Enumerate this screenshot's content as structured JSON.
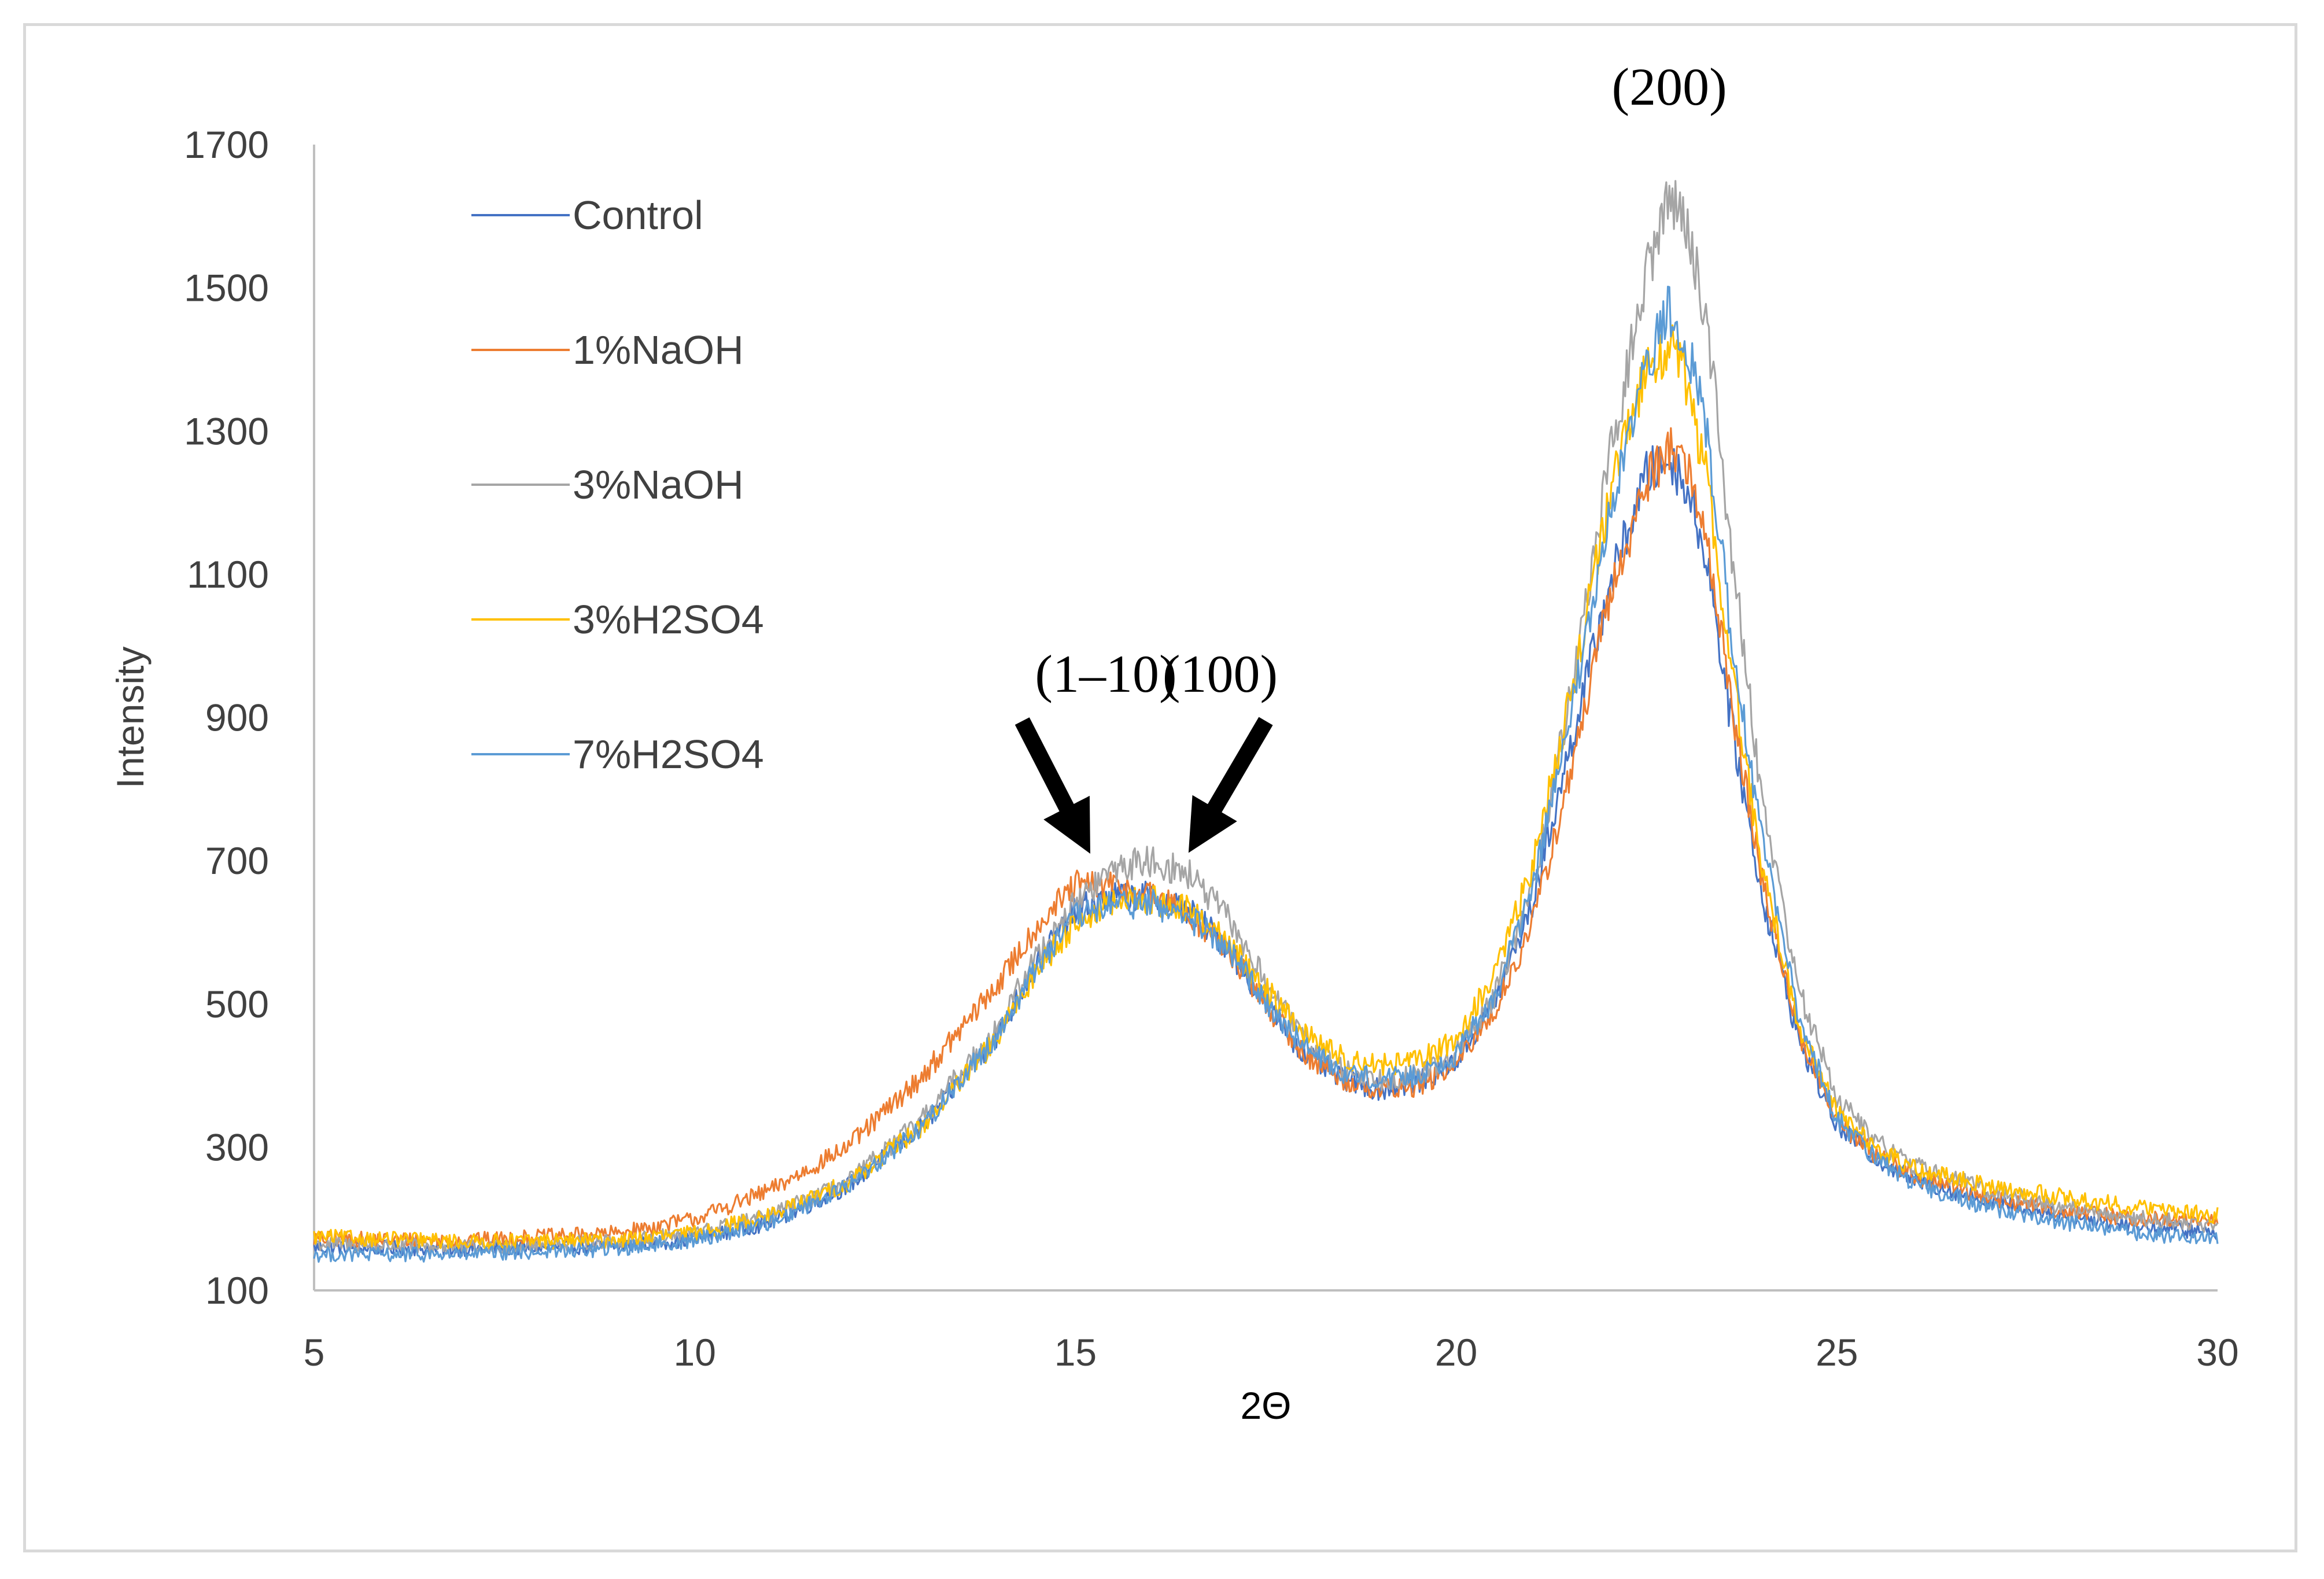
{
  "chart_data": {
    "type": "line",
    "title": "",
    "xlabel": "2Θ",
    "ylabel": "Intensity",
    "xlim": [
      5,
      30
    ],
    "ylim": [
      100,
      1700
    ],
    "xticks": [
      5,
      10,
      15,
      20,
      25,
      30
    ],
    "yticks": [
      100,
      300,
      500,
      700,
      900,
      1100,
      1300,
      1500,
      1700
    ],
    "grid": false,
    "legend_position": "top-left",
    "series": [
      {
        "name": "Control",
        "color": "#4472c4",
        "x": [
          5,
          7,
          9,
          10,
          11,
          12,
          13,
          14,
          14.5,
          15,
          15.5,
          16,
          16.5,
          17,
          17.5,
          18,
          18.5,
          19,
          19.5,
          20,
          20.5,
          21,
          21.5,
          22,
          22.5,
          22.8,
          23,
          23.3,
          23.6,
          24,
          24.5,
          25,
          25.5,
          26,
          27,
          28,
          29,
          30
        ],
        "y": [
          160,
          158,
          162,
          172,
          195,
          245,
          330,
          460,
          560,
          630,
          650,
          650,
          630,
          580,
          500,
          430,
          395,
          380,
          390,
          420,
          500,
          640,
          860,
          1080,
          1240,
          1260,
          1230,
          1120,
          900,
          660,
          450,
          330,
          285,
          255,
          225,
          205,
          190,
          180
        ]
      },
      {
        "name": "1%NaOH",
        "color": "#ed7d31",
        "x": [
          5,
          7,
          9,
          10,
          11,
          12,
          13,
          14,
          14.5,
          15,
          15.5,
          16,
          16.5,
          17,
          17.5,
          18,
          18.5,
          19,
          19.5,
          20,
          20.5,
          21,
          21.5,
          22,
          22.5,
          22.8,
          23,
          23.3,
          23.6,
          24,
          24.5,
          25,
          25.5,
          26,
          27,
          28,
          29,
          30
        ],
        "y": [
          172,
          170,
          180,
          200,
          240,
          300,
          400,
          530,
          610,
          665,
          665,
          650,
          625,
          575,
          500,
          430,
          395,
          380,
          385,
          415,
          490,
          610,
          820,
          1060,
          1230,
          1280,
          1260,
          1150,
          930,
          680,
          460,
          335,
          290,
          260,
          230,
          210,
          200,
          195
        ]
      },
      {
        "name": "3%NaOH",
        "color": "#a5a5a5",
        "x": [
          5,
          7,
          9,
          10,
          11,
          12,
          13,
          14,
          14.5,
          15,
          15.5,
          16,
          16.5,
          17,
          17.5,
          18,
          18.5,
          19,
          19.5,
          20,
          20.5,
          21,
          21.5,
          22,
          22.5,
          22.8,
          23,
          23.3,
          23.6,
          24,
          24.5,
          25,
          25.5,
          26,
          27,
          28,
          29,
          30
        ],
        "y": [
          165,
          160,
          168,
          180,
          205,
          250,
          340,
          470,
          570,
          640,
          690,
          700,
          680,
          620,
          530,
          450,
          410,
          395,
          400,
          430,
          510,
          660,
          930,
          1250,
          1520,
          1630,
          1600,
          1450,
          1150,
          800,
          520,
          370,
          310,
          275,
          240,
          215,
          200,
          190
        ]
      },
      {
        "name": "3%H2SO4",
        "color": "#ffc000",
        "x": [
          5,
          7,
          9,
          10,
          11,
          12,
          13,
          14,
          14.5,
          15,
          15.5,
          16,
          16.5,
          17,
          17.5,
          18,
          18.5,
          19,
          19.5,
          20,
          20.5,
          21,
          21.5,
          22,
          22.5,
          22.8,
          23,
          23.3,
          23.6,
          24,
          24.5,
          25,
          25.5,
          26,
          27,
          28,
          29,
          30
        ],
        "y": [
          175,
          168,
          170,
          180,
          205,
          250,
          330,
          455,
          550,
          615,
          640,
          645,
          630,
          585,
          520,
          460,
          425,
          415,
          420,
          450,
          540,
          690,
          930,
          1200,
          1390,
          1420,
          1380,
          1230,
          980,
          700,
          470,
          350,
          300,
          270,
          245,
          230,
          215,
          205
        ]
      },
      {
        "name": "7%H2SO4",
        "color": "#5b9bd5",
        "x": [
          5,
          7,
          9,
          10,
          11,
          12,
          13,
          14,
          14.5,
          15,
          15.5,
          16,
          16.5,
          17,
          17.5,
          18,
          18.5,
          19,
          19.5,
          20,
          20.5,
          21,
          21.5,
          22,
          22.5,
          22.8,
          23,
          23.3,
          23.6,
          24,
          24.5,
          25,
          25.5,
          26,
          27,
          28,
          29,
          30
        ],
        "y": [
          150,
          150,
          158,
          170,
          195,
          245,
          330,
          460,
          555,
          620,
          640,
          640,
          620,
          575,
          505,
          440,
          405,
          395,
          400,
          430,
          510,
          660,
          900,
          1170,
          1390,
          1470,
          1440,
          1290,
          1030,
          740,
          480,
          340,
          285,
          250,
          215,
          195,
          180,
          170
        ]
      }
    ],
    "annotations": [
      {
        "text": "(200)",
        "x": 22.8,
        "y": 1780
      },
      {
        "text": "(1–10)",
        "x": 15.4,
        "y": 960
      },
      {
        "text": "(100)",
        "x": 16.9,
        "y": 960
      }
    ],
    "arrows": [
      {
        "label": "(1–10)",
        "from": [
          14.3,
          895
        ],
        "to": [
          15.0,
          750
        ]
      },
      {
        "label": "(100)",
        "from": [
          17.5,
          895
        ],
        "to": [
          16.7,
          750
        ]
      }
    ]
  }
}
